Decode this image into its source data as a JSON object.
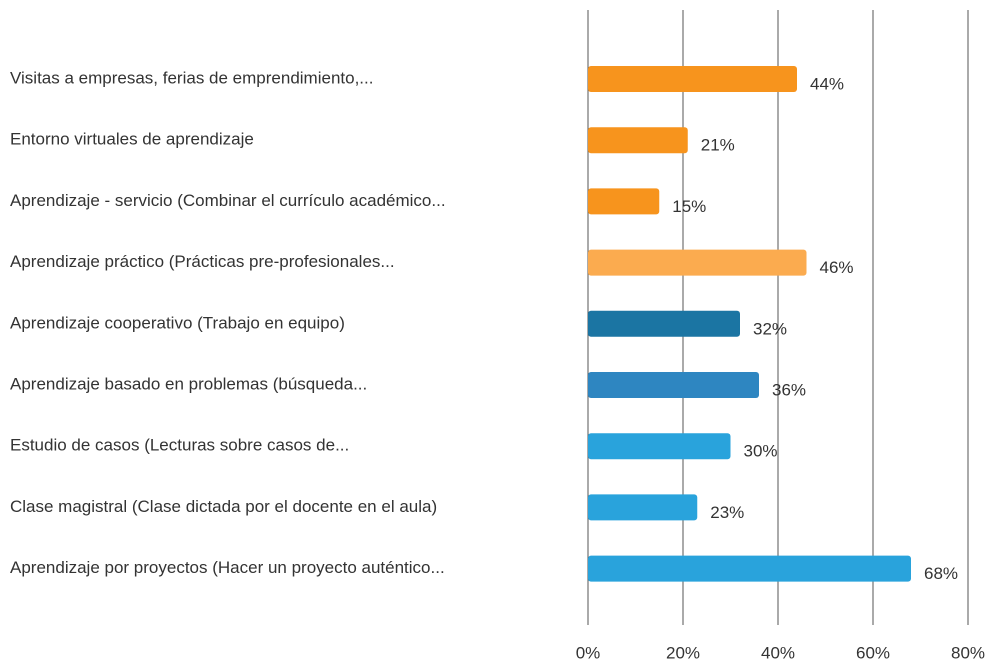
{
  "chart_data": {
    "type": "barh",
    "categories": [
      "Visitas a empresas, ferias de emprendimiento,...",
      "Entorno virtuales de aprendizaje",
      "Aprendizaje - servicio (Combinar el currículo académico...",
      "Aprendizaje práctico (Prácticas pre-profesionales...",
      "Aprendizaje cooperativo (Trabajo en equipo)",
      "Aprendizaje basado en problemas (búsqueda...",
      "Estudio de casos (Lecturas sobre casos de...",
      "Clase magistral (Clase dictada por el docente en el aula)",
      "Aprendizaje por proyectos (Hacer un proyecto auténtico..."
    ],
    "values": [
      44,
      21,
      15,
      46,
      32,
      36,
      30,
      23,
      68
    ],
    "value_labels": [
      "44%",
      "21%",
      "15%",
      "46%",
      "32%",
      "36%",
      "30%",
      "23%",
      "68%"
    ],
    "colors": [
      "#f7941d",
      "#f7941d",
      "#f7941d",
      "#fbab4f",
      "#1b75a3",
      "#2e86c1",
      "#29a3dc",
      "#29a3dc",
      "#29a3dc"
    ],
    "xlim": [
      0,
      80
    ],
    "xticks": [
      {
        "value": 0,
        "label": "0%"
      },
      {
        "value": 20,
        "label": "20%"
      },
      {
        "value": 40,
        "label": "40%"
      },
      {
        "value": 60,
        "label": "60%"
      },
      {
        "value": 80,
        "label": "80%"
      }
    ],
    "grid": true
  }
}
